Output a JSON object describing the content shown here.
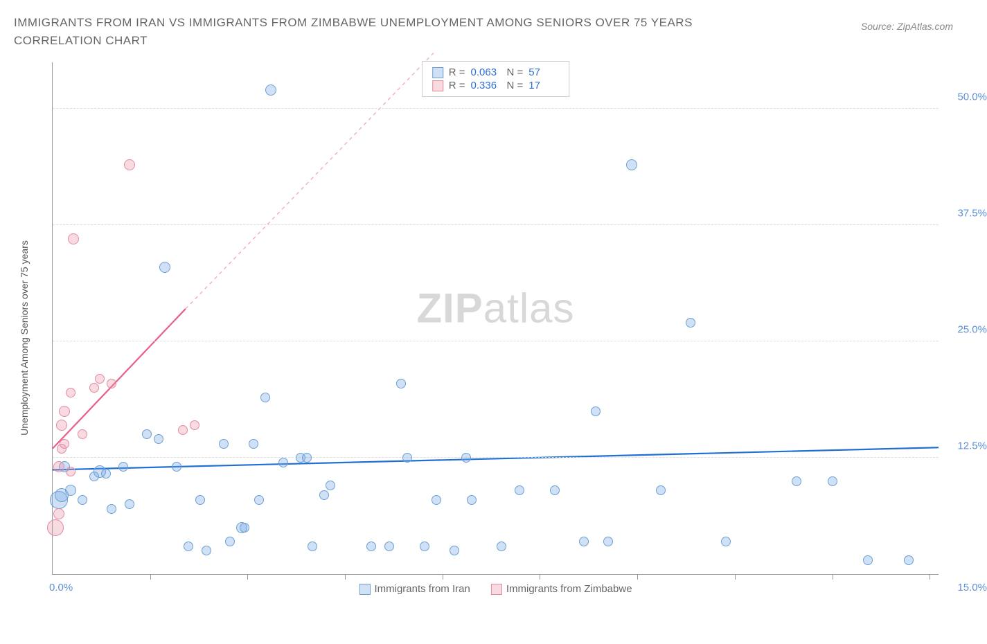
{
  "title": "IMMIGRANTS FROM IRAN VS IMMIGRANTS FROM ZIMBABWE UNEMPLOYMENT AMONG SENIORS OVER 75 YEARS CORRELATION CHART",
  "source_label": "Source: ZipAtlas.com",
  "watermark": {
    "bold": "ZIP",
    "light": "atlas"
  },
  "y_axis_label": "Unemployment Among Seniors over 75 years",
  "chart": {
    "type": "scatter",
    "xlim": [
      0,
      15
    ],
    "ylim": [
      0,
      55
    ],
    "x_tick_start": "0.0%",
    "x_tick_end": "15.0%",
    "x_tick_positions_pct": [
      11,
      22,
      33,
      44,
      55,
      66,
      77,
      88,
      99
    ],
    "y_gridlines": [
      12.5,
      25.0,
      37.5,
      50.0
    ],
    "y_tick_labels": [
      "12.5%",
      "25.0%",
      "37.5%",
      "50.0%"
    ],
    "background_color": "#ffffff",
    "grid_color": "#dddddd",
    "series": [
      {
        "name": "Immigrants from Iran",
        "color_fill": "rgba(120,170,230,0.35)",
        "color_stroke": "#6a9fd4",
        "trend_color": "#1f6fd4",
        "trend": {
          "x1_pct": 0,
          "y1_val": 11.2,
          "x2_pct": 100,
          "y2_val": 13.6,
          "dash_from_pct": 100
        },
        "stats": {
          "R": "0.063",
          "N": "57"
        },
        "points": [
          {
            "x": 0.1,
            "y": 8.0,
            "r": 13
          },
          {
            "x": 0.15,
            "y": 8.5,
            "r": 10
          },
          {
            "x": 0.2,
            "y": 11.5,
            "r": 8
          },
          {
            "x": 0.3,
            "y": 9.0,
            "r": 8
          },
          {
            "x": 0.5,
            "y": 8.0,
            "r": 7
          },
          {
            "x": 0.7,
            "y": 10.5,
            "r": 7
          },
          {
            "x": 0.8,
            "y": 11.0,
            "r": 9
          },
          {
            "x": 0.9,
            "y": 10.8,
            "r": 7
          },
          {
            "x": 1.0,
            "y": 7.0,
            "r": 7
          },
          {
            "x": 1.2,
            "y": 11.5,
            "r": 7
          },
          {
            "x": 1.3,
            "y": 7.5,
            "r": 7
          },
          {
            "x": 1.6,
            "y": 15.0,
            "r": 7
          },
          {
            "x": 1.8,
            "y": 14.5,
            "r": 7
          },
          {
            "x": 1.9,
            "y": 33.0,
            "r": 8
          },
          {
            "x": 2.1,
            "y": 11.5,
            "r": 7
          },
          {
            "x": 2.3,
            "y": 3.0,
            "r": 7
          },
          {
            "x": 2.5,
            "y": 8.0,
            "r": 7
          },
          {
            "x": 2.6,
            "y": 2.5,
            "r": 7
          },
          {
            "x": 2.9,
            "y": 14.0,
            "r": 7
          },
          {
            "x": 3.0,
            "y": 3.5,
            "r": 7
          },
          {
            "x": 3.2,
            "y": 5.0,
            "r": 8
          },
          {
            "x": 3.25,
            "y": 5.0,
            "r": 7
          },
          {
            "x": 3.4,
            "y": 14.0,
            "r": 7
          },
          {
            "x": 3.5,
            "y": 8.0,
            "r": 7
          },
          {
            "x": 3.6,
            "y": 19.0,
            "r": 7
          },
          {
            "x": 3.7,
            "y": 52.0,
            "r": 8
          },
          {
            "x": 3.9,
            "y": 12.0,
            "r": 7
          },
          {
            "x": 4.2,
            "y": 12.5,
            "r": 7
          },
          {
            "x": 4.3,
            "y": 12.5,
            "r": 7
          },
          {
            "x": 4.4,
            "y": 3.0,
            "r": 7
          },
          {
            "x": 4.6,
            "y": 8.5,
            "r": 7
          },
          {
            "x": 4.7,
            "y": 9.5,
            "r": 7
          },
          {
            "x": 5.4,
            "y": 3.0,
            "r": 7
          },
          {
            "x": 5.7,
            "y": 3.0,
            "r": 7
          },
          {
            "x": 5.9,
            "y": 20.5,
            "r": 7
          },
          {
            "x": 6.0,
            "y": 12.5,
            "r": 7
          },
          {
            "x": 6.3,
            "y": 3.0,
            "r": 7
          },
          {
            "x": 6.5,
            "y": 8.0,
            "r": 7
          },
          {
            "x": 6.8,
            "y": 2.5,
            "r": 7
          },
          {
            "x": 7.0,
            "y": 12.5,
            "r": 7
          },
          {
            "x": 7.1,
            "y": 8.0,
            "r": 7
          },
          {
            "x": 7.6,
            "y": 3.0,
            "r": 7
          },
          {
            "x": 7.9,
            "y": 9.0,
            "r": 7
          },
          {
            "x": 8.5,
            "y": 9.0,
            "r": 7
          },
          {
            "x": 9.0,
            "y": 3.5,
            "r": 7
          },
          {
            "x": 9.2,
            "y": 17.5,
            "r": 7
          },
          {
            "x": 9.4,
            "y": 3.5,
            "r": 7
          },
          {
            "x": 9.8,
            "y": 44.0,
            "r": 8
          },
          {
            "x": 10.3,
            "y": 9.0,
            "r": 7
          },
          {
            "x": 10.8,
            "y": 27.0,
            "r": 7
          },
          {
            "x": 11.4,
            "y": 3.5,
            "r": 7
          },
          {
            "x": 12.6,
            "y": 10.0,
            "r": 7
          },
          {
            "x": 13.2,
            "y": 10.0,
            "r": 7
          },
          {
            "x": 13.8,
            "y": 1.5,
            "r": 7
          },
          {
            "x": 14.5,
            "y": 1.5,
            "r": 7
          }
        ]
      },
      {
        "name": "Immigrants from Zimbabwe",
        "color_fill": "rgba(235,150,170,0.35)",
        "color_stroke": "#e28aa0",
        "trend_color": "#e85d8a",
        "trend": {
          "x1_pct": 0,
          "y1_val": 13.5,
          "x2_pct": 15,
          "y2_val": 28.5,
          "dash_from_pct": 15,
          "dash_x2_pct": 43,
          "dash_y2_val": 56
        },
        "stats": {
          "R": "0.336",
          "N": "17"
        },
        "points": [
          {
            "x": 0.05,
            "y": 5.0,
            "r": 12
          },
          {
            "x": 0.1,
            "y": 6.5,
            "r": 8
          },
          {
            "x": 0.1,
            "y": 11.5,
            "r": 8
          },
          {
            "x": 0.15,
            "y": 13.5,
            "r": 7
          },
          {
            "x": 0.15,
            "y": 16.0,
            "r": 8
          },
          {
            "x": 0.2,
            "y": 17.5,
            "r": 8
          },
          {
            "x": 0.2,
            "y": 14.0,
            "r": 7
          },
          {
            "x": 0.3,
            "y": 19.5,
            "r": 7
          },
          {
            "x": 0.3,
            "y": 11.0,
            "r": 7
          },
          {
            "x": 0.35,
            "y": 36.0,
            "r": 8
          },
          {
            "x": 0.5,
            "y": 15.0,
            "r": 7
          },
          {
            "x": 0.7,
            "y": 20.0,
            "r": 7
          },
          {
            "x": 0.8,
            "y": 21.0,
            "r": 7
          },
          {
            "x": 1.0,
            "y": 20.5,
            "r": 7
          },
          {
            "x": 1.3,
            "y": 44.0,
            "r": 8
          },
          {
            "x": 2.2,
            "y": 15.5,
            "r": 7
          },
          {
            "x": 2.4,
            "y": 16.0,
            "r": 7
          }
        ]
      }
    ]
  }
}
